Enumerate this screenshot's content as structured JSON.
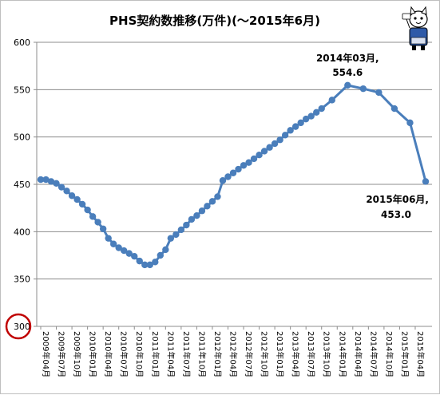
{
  "chart_data": {
    "type": "line",
    "title": "PHS契約数推移(万件)(～2015年6月)",
    "ylim": [
      300,
      600
    ],
    "y_ticks": [
      300,
      350,
      400,
      450,
      500,
      550,
      600
    ],
    "grid": "horizontal",
    "x_tick_labels": [
      "2009年04月",
      "2009年07月",
      "2009年10月",
      "2010年01月",
      "2010年04月",
      "2010年07月",
      "2010年10月",
      "2011年01月",
      "2011年04月",
      "2011年07月",
      "2011年10月",
      "2012年01月",
      "2012年04月",
      "2012年07月",
      "2012年10月",
      "2013年01月",
      "2013年04月",
      "2013年07月",
      "2013年10月",
      "2014年01月",
      "2014年04月",
      "2014年07月",
      "2014年10月",
      "2015年01月",
      "2015年04月"
    ],
    "x": [
      "2009年04月",
      "2009年05月",
      "2009年06月",
      "2009年07月",
      "2009年08月",
      "2009年09月",
      "2009年10月",
      "2009年11月",
      "2009年12月",
      "2010年01月",
      "2010年02月",
      "2010年03月",
      "2010年04月",
      "2010年05月",
      "2010年06月",
      "2010年07月",
      "2010年08月",
      "2010年09月",
      "2010年10月",
      "2010年11月",
      "2010年12月",
      "2011年01月",
      "2011年02月",
      "2011年03月",
      "2011年04月",
      "2011年05月",
      "2011年06月",
      "2011年07月",
      "2011年08月",
      "2011年09月",
      "2011年10月",
      "2011年11月",
      "2011年12月",
      "2012年01月",
      "2012年02月",
      "2012年03月",
      "2012年04月",
      "2012年05月",
      "2012年06月",
      "2012年07月",
      "2012年08月",
      "2012年09月",
      "2012年10月",
      "2012年11月",
      "2012年12月",
      "2013年01月",
      "2013年02月",
      "2013年03月",
      "2013年04月",
      "2013年05月",
      "2013年06月",
      "2013年07月",
      "2013年08月",
      "2013年09月",
      "2013年10月",
      "2013年12月",
      "2014年03月",
      "2014年06月",
      "2014年09月",
      "2014年12月",
      "2015年03月",
      "2015年06月"
    ],
    "series": [
      {
        "color": "#4a7ebb",
        "values": [
          455,
          455,
          453,
          451,
          447,
          443,
          438,
          434,
          429,
          423,
          416,
          410,
          403,
          393,
          387,
          383,
          380,
          377,
          374,
          369,
          365,
          365,
          368,
          375,
          381,
          393,
          397,
          402,
          407,
          413,
          417,
          422,
          427,
          432,
          437,
          454,
          458,
          462,
          466,
          470,
          473,
          477,
          481,
          485,
          489,
          493,
          497,
          502,
          507,
          511,
          515,
          519,
          522,
          526,
          530,
          539,
          554.6,
          551,
          547,
          530,
          515,
          453.0
        ]
      }
    ],
    "annotations": [
      {
        "line1": "2014年03月,",
        "line2": "554.6",
        "at": "2014年03月"
      },
      {
        "line1": "2015年06月,",
        "line2": "453.0",
        "at": "2015年06月"
      }
    ],
    "highlight": {
      "type": "red-circle",
      "target": "y-tick 300",
      "color": "#c00000"
    }
  },
  "mascot": {
    "name": "cat-mascot-icon"
  }
}
